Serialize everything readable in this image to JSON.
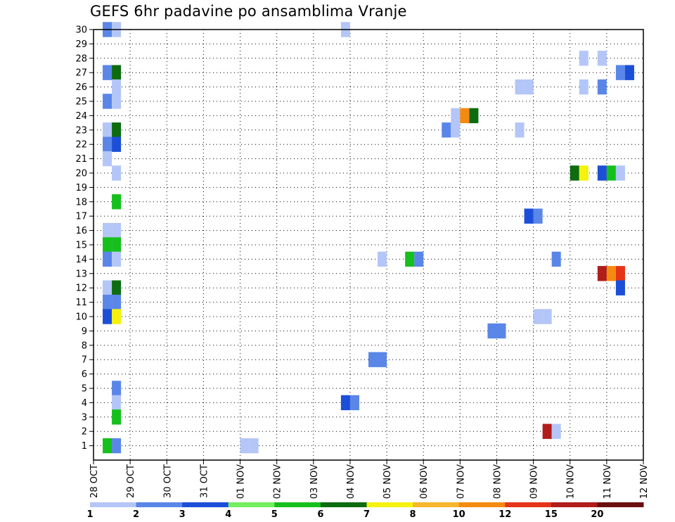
{
  "chart_data": {
    "type": "heatmap",
    "title": "GEFS 6hr padavine po ansamblima Vranje",
    "x_tick_labels": [
      "28 OCT",
      "29 OCT",
      "30 OCT",
      "31 OCT",
      "01 NOV",
      "02 NOV",
      "03 NOV",
      "04 NOV",
      "05 NOV",
      "06 NOV",
      "07 NOV",
      "08 NOV",
      "09 NOV",
      "10 NOV",
      "11 NOV",
      "12 NOV"
    ],
    "y_tick_labels": [
      "1",
      "2",
      "3",
      "4",
      "5",
      "6",
      "7",
      "8",
      "9",
      "10",
      "11",
      "12",
      "13",
      "14",
      "15",
      "16",
      "17",
      "18",
      "19",
      "20",
      "21",
      "22",
      "23",
      "24",
      "25",
      "26",
      "27",
      "28",
      "29",
      "30"
    ],
    "x_unit": "day",
    "x_step": 0.25,
    "xlim": [
      0,
      15
    ],
    "ylim": [
      0,
      30
    ],
    "grid": true,
    "colorbar": {
      "labels": [
        "1",
        "2",
        "3",
        "4",
        "5",
        "6",
        "7",
        "8",
        "10",
        "12",
        "15",
        "20"
      ],
      "colors": [
        "#b4c6f7",
        "#5a86e8",
        "#1c4fd8",
        "#72ee5e",
        "#16c01c",
        "#0d6b10",
        "#f4f20e",
        "#f8b52e",
        "#f58a10",
        "#e53418",
        "#b01d1a",
        "#6a0f10"
      ]
    },
    "cells": [
      {
        "x": 0.25,
        "y": 30,
        "v": 2
      },
      {
        "x": 0.5,
        "y": 30,
        "v": 1
      },
      {
        "x": 6.75,
        "y": 30,
        "v": 1
      },
      {
        "x": 13.25,
        "y": 28,
        "v": 1
      },
      {
        "x": 13.75,
        "y": 28,
        "v": 1
      },
      {
        "x": 0.25,
        "y": 27,
        "v": 2
      },
      {
        "x": 0.5,
        "y": 27,
        "v": 6
      },
      {
        "x": 14.25,
        "y": 27,
        "v": 2
      },
      {
        "x": 14.5,
        "y": 27,
        "v": 3
      },
      {
        "x": 0.5,
        "y": 26,
        "v": 1
      },
      {
        "x": 11.5,
        "y": 26,
        "v": 1
      },
      {
        "x": 11.75,
        "y": 26,
        "v": 1
      },
      {
        "x": 13.25,
        "y": 26,
        "v": 1
      },
      {
        "x": 13.75,
        "y": 26,
        "v": 2
      },
      {
        "x": 0.25,
        "y": 25,
        "v": 2
      },
      {
        "x": 0.5,
        "y": 25,
        "v": 1
      },
      {
        "x": 9.75,
        "y": 24,
        "v": 1
      },
      {
        "x": 10.0,
        "y": 24,
        "v": 10
      },
      {
        "x": 10.25,
        "y": 24,
        "v": 6
      },
      {
        "x": 0.25,
        "y": 23,
        "v": 1
      },
      {
        "x": 0.5,
        "y": 23,
        "v": 6
      },
      {
        "x": 9.5,
        "y": 23,
        "v": 2
      },
      {
        "x": 9.75,
        "y": 23,
        "v": 1
      },
      {
        "x": 11.5,
        "y": 23,
        "v": 1
      },
      {
        "x": 0.25,
        "y": 22,
        "v": 2
      },
      {
        "x": 0.5,
        "y": 22,
        "v": 3
      },
      {
        "x": 0.25,
        "y": 21,
        "v": 1
      },
      {
        "x": 0.5,
        "y": 20,
        "v": 1
      },
      {
        "x": 13.0,
        "y": 20,
        "v": 6
      },
      {
        "x": 13.25,
        "y": 20,
        "v": 7
      },
      {
        "x": 13.75,
        "y": 20,
        "v": 3
      },
      {
        "x": 14.0,
        "y": 20,
        "v": 5
      },
      {
        "x": 14.25,
        "y": 20,
        "v": 1
      },
      {
        "x": 0.5,
        "y": 18,
        "v": 5
      },
      {
        "x": 11.75,
        "y": 17,
        "v": 3
      },
      {
        "x": 12.0,
        "y": 17,
        "v": 2
      },
      {
        "x": 0.25,
        "y": 16,
        "v": 1
      },
      {
        "x": 0.5,
        "y": 16,
        "v": 1
      },
      {
        "x": 0.25,
        "y": 15,
        "v": 5
      },
      {
        "x": 0.5,
        "y": 15,
        "v": 5
      },
      {
        "x": 0.25,
        "y": 14,
        "v": 2
      },
      {
        "x": 0.5,
        "y": 14,
        "v": 1
      },
      {
        "x": 7.75,
        "y": 14,
        "v": 1
      },
      {
        "x": 8.5,
        "y": 14,
        "v": 5
      },
      {
        "x": 8.75,
        "y": 14,
        "v": 2
      },
      {
        "x": 12.5,
        "y": 14,
        "v": 2
      },
      {
        "x": 13.75,
        "y": 13,
        "v": 15
      },
      {
        "x": 14.0,
        "y": 13,
        "v": 10
      },
      {
        "x": 14.25,
        "y": 13,
        "v": 12
      },
      {
        "x": 0.25,
        "y": 12,
        "v": 1
      },
      {
        "x": 0.5,
        "y": 12,
        "v": 6
      },
      {
        "x": 14.25,
        "y": 12,
        "v": 3
      },
      {
        "x": 0.25,
        "y": 11,
        "v": 2
      },
      {
        "x": 0.5,
        "y": 11,
        "v": 2
      },
      {
        "x": 0.25,
        "y": 10,
        "v": 3
      },
      {
        "x": 0.5,
        "y": 10,
        "v": 7
      },
      {
        "x": 12.0,
        "y": 10,
        "v": 1
      },
      {
        "x": 12.25,
        "y": 10,
        "v": 1
      },
      {
        "x": 10.75,
        "y": 9,
        "v": 2
      },
      {
        "x": 11.0,
        "y": 9,
        "v": 2
      },
      {
        "x": 7.5,
        "y": 7,
        "v": 2
      },
      {
        "x": 7.75,
        "y": 7,
        "v": 2
      },
      {
        "x": 0.5,
        "y": 5,
        "v": 2
      },
      {
        "x": 0.5,
        "y": 4,
        "v": 1
      },
      {
        "x": 6.75,
        "y": 4,
        "v": 3
      },
      {
        "x": 7.0,
        "y": 4,
        "v": 2
      },
      {
        "x": 0.5,
        "y": 3,
        "v": 5
      },
      {
        "x": 12.25,
        "y": 2,
        "v": 15
      },
      {
        "x": 12.5,
        "y": 2,
        "v": 1
      },
      {
        "x": 0.25,
        "y": 1,
        "v": 5
      },
      {
        "x": 0.5,
        "y": 1,
        "v": 2
      },
      {
        "x": 4.0,
        "y": 1,
        "v": 1
      },
      {
        "x": 4.25,
        "y": 1,
        "v": 1
      }
    ]
  }
}
